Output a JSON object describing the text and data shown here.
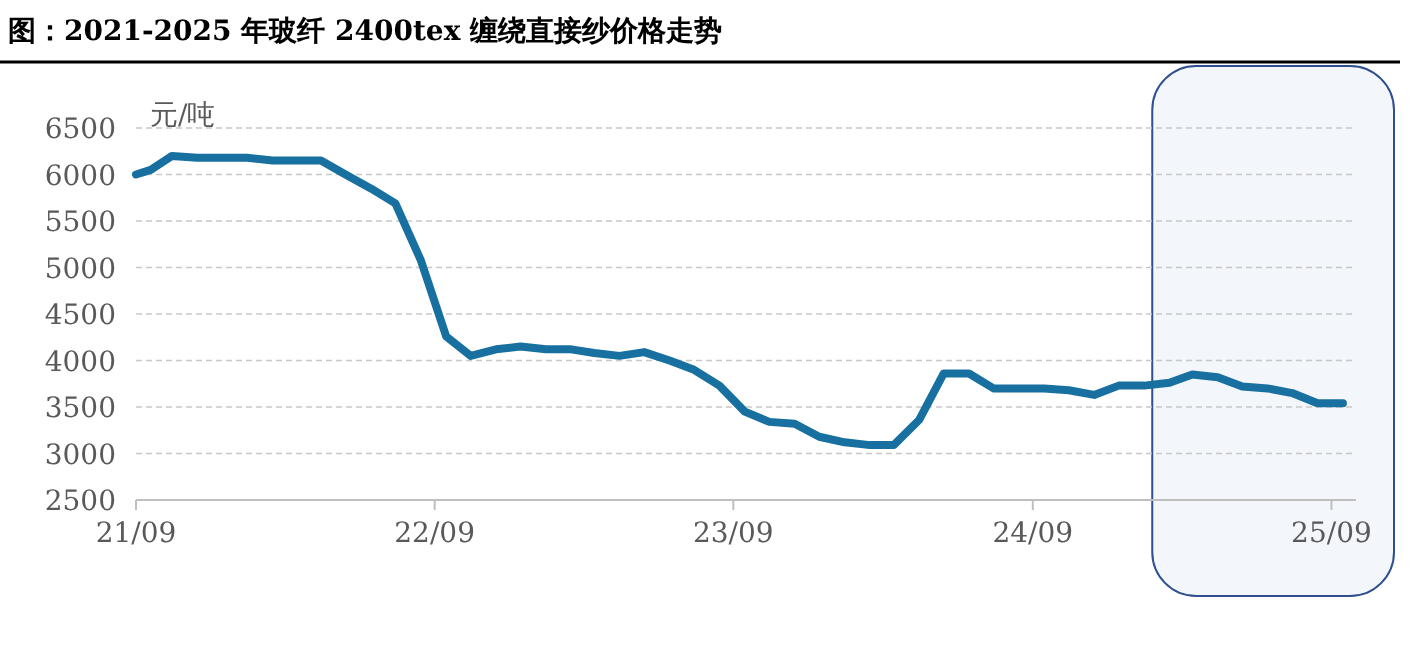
{
  "chart_data": {
    "type": "line",
    "title": "图：2021-2025 年玻纤 2400tex 缠绕直接纱价格走势",
    "ylabel": "元/吨",
    "x": [
      "2021-09-01",
      "2021-09-19",
      "2021-10-15",
      "2021-11-15",
      "2021-12-15",
      "2022-01-15",
      "2022-02-15",
      "2022-03-15",
      "2022-04-15",
      "2022-05-15",
      "2022-06-15",
      "2022-07-15",
      "2022-08-15",
      "2022-09-15",
      "2022-10-15",
      "2022-11-15",
      "2022-12-15",
      "2023-01-15",
      "2023-02-15",
      "2023-03-15",
      "2023-04-15",
      "2023-05-15",
      "2023-06-15",
      "2023-07-15",
      "2023-08-15",
      "2023-09-15",
      "2023-10-15",
      "2023-11-15",
      "2023-12-15",
      "2024-01-15",
      "2024-02-15",
      "2024-03-15",
      "2024-04-15",
      "2024-05-15",
      "2024-06-15",
      "2024-07-15",
      "2024-08-15",
      "2024-09-15",
      "2024-10-15",
      "2024-11-15",
      "2024-12-15",
      "2025-01-15",
      "2025-02-15",
      "2025-03-15",
      "2025-04-15",
      "2025-05-15",
      "2025-06-15",
      "2025-07-15",
      "2025-08-15",
      "2025-09-15"
    ],
    "series": [
      {
        "color": "#17709f",
        "values": [
          6000,
          6050,
          6200,
          6180,
          6180,
          6180,
          6150,
          6150,
          6150,
          6000,
          5850,
          5690,
          5080,
          4260,
          4050,
          4120,
          4150,
          4120,
          4120,
          4080,
          4050,
          4090,
          4000,
          3900,
          3730,
          3450,
          3340,
          3320,
          3180,
          3120,
          3090,
          3090,
          3360,
          3860,
          3860,
          3700,
          3700,
          3700,
          3680,
          3630,
          3730,
          3730,
          3760,
          3850,
          3820,
          3720,
          3700,
          3650,
          3540,
          3540
        ]
      }
    ],
    "xlim": [
      "2021-09-01",
      "2025-10-01"
    ],
    "xticks": [
      {
        "value": "2021-09-01",
        "label": "21/09"
      },
      {
        "value": "2022-09-01",
        "label": "22/09"
      },
      {
        "value": "2023-09-01",
        "label": "23/09"
      },
      {
        "value": "2024-09-01",
        "label": "24/09"
      },
      {
        "value": "2025-09-01",
        "label": "25/09"
      }
    ],
    "ylim": [
      2500,
      6500
    ],
    "yticks": [
      2500,
      3000,
      3500,
      4000,
      4500,
      5000,
      5500,
      6000,
      6500
    ],
    "grid": "y",
    "marker": "none",
    "line_style": "solid",
    "bands": [
      {
        "axis": "x",
        "from": "2025-01-25",
        "to": "2025-10-01",
        "color": "#f3f6fb"
      }
    ]
  }
}
